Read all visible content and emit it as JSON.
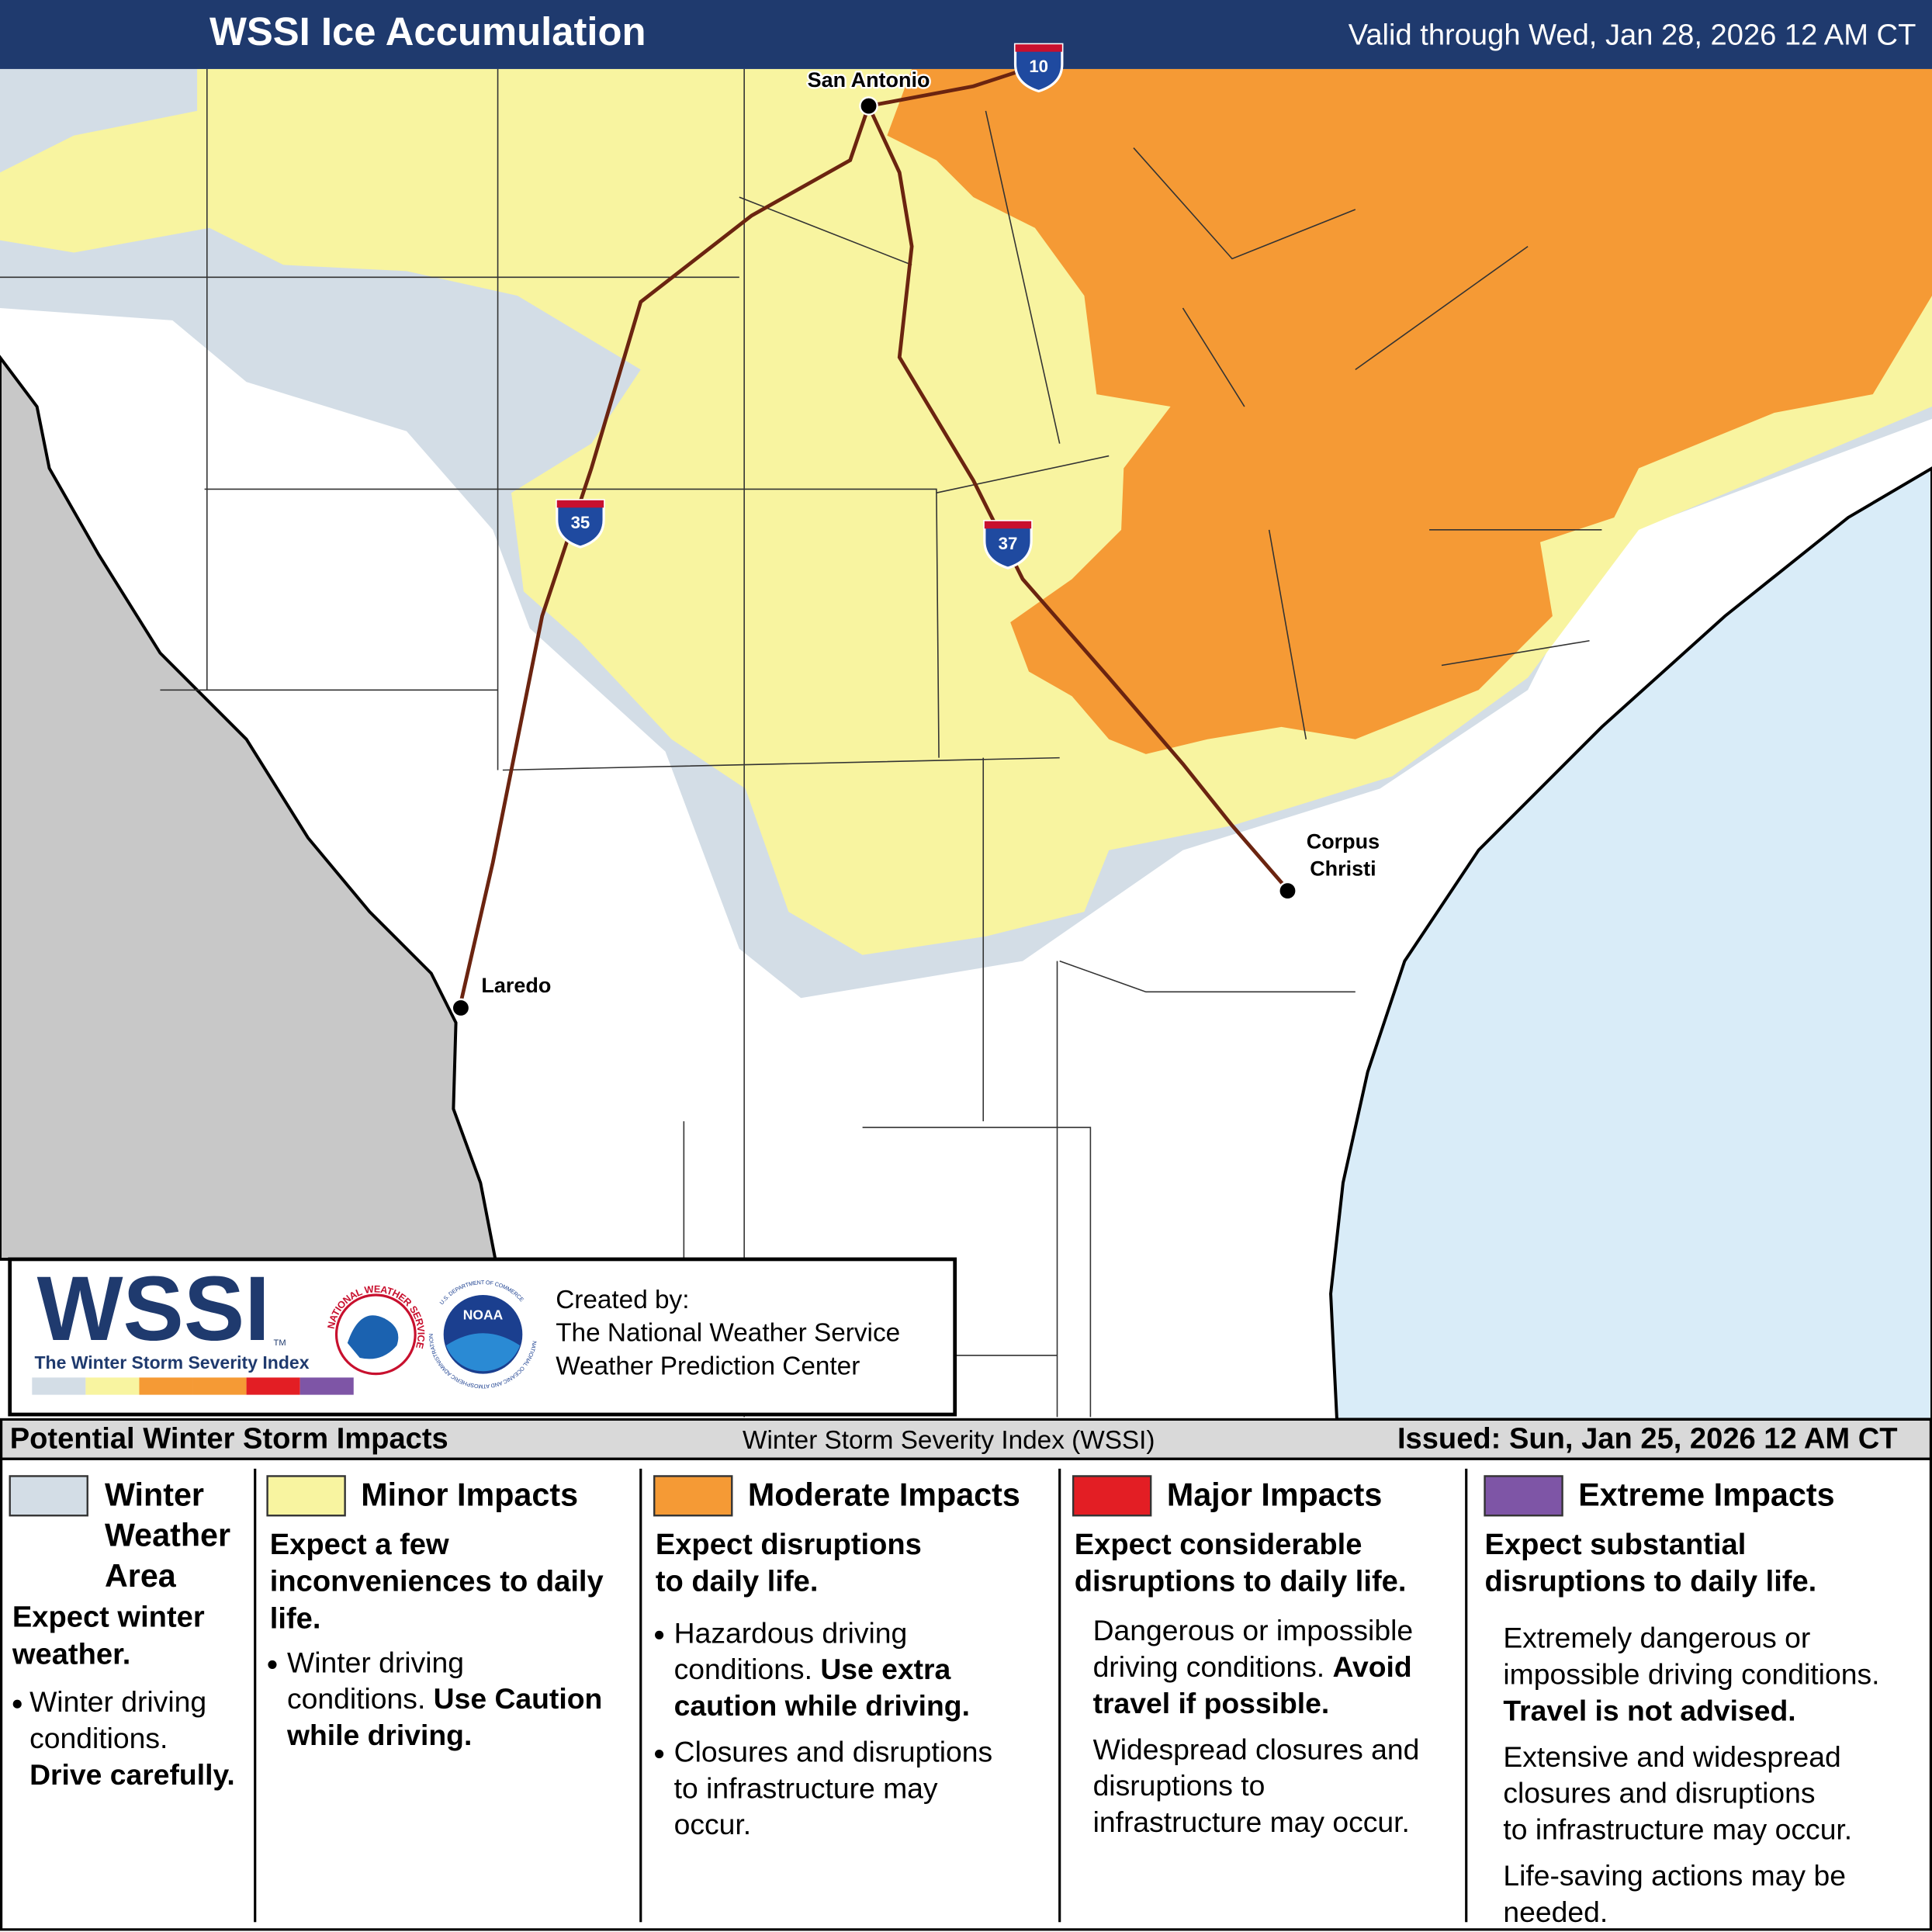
{
  "header": {
    "title": "WSSI Ice Accumulation",
    "valid": "Valid through Wed, Jan 28, 2026 12 AM CT"
  },
  "map": {
    "cities": [
      {
        "label_lines": [
          "San Antonio"
        ]
      },
      {
        "label_lines": [
          "Laredo"
        ]
      },
      {
        "label_lines": [
          "Corpus",
          "Christi"
        ]
      }
    ],
    "highways": [
      "10",
      "35",
      "37"
    ]
  },
  "logo": {
    "wssi": "WSSI",
    "tm": "TM",
    "subtitle": "The Winter Storm Severity Index",
    "nws_ring": "NATIONAL WEATHER SERVICE",
    "noaa": "NOAA",
    "noaa_ring": "NATIONAL OCEANIC AND ATMOSPHERIC ADMINISTRATION",
    "doc_ring": "U.S. DEPARTMENT OF COMMERCE"
  },
  "credits": [
    "Created by:",
    "The National Weather Service",
    "Weather Prediction Center"
  ],
  "legend": {
    "title": "Potential Winter Storm Impacts",
    "index": "Winter Storm Severity Index (WSSI)",
    "issued": "Issued: Sun, Jan 25, 2026 12 AM CT",
    "categories": [
      {
        "name": [
          "Winter",
          "Weather",
          "Area"
        ],
        "color": "#d3dde6",
        "summary": [
          "Expect winter",
          "weather."
        ],
        "bulleted": true,
        "details": [
          [
            [
              {
                "text": "Winter driving"
              }
            ],
            [
              {
                "text": "conditions."
              }
            ],
            [
              {
                "text": "Drive carefully.",
                "bold": true
              }
            ]
          ]
        ]
      },
      {
        "name": [
          "Minor Impacts"
        ],
        "color": "#f8f4a0",
        "summary": [
          "Expect a few",
          "inconveniences to daily",
          "life."
        ],
        "bulleted": true,
        "details": [
          [
            [
              {
                "text": "Winter driving"
              }
            ],
            [
              {
                "text": "conditions. "
              },
              {
                "text": "Use Caution",
                "bold": true
              }
            ],
            [
              {
                "text": "while driving.",
                "bold": true
              }
            ]
          ]
        ]
      },
      {
        "name": [
          "Moderate Impacts"
        ],
        "color": "#f59a35",
        "summary": [
          "Expect disruptions",
          "to daily life."
        ],
        "bulleted": true,
        "details": [
          [
            [
              {
                "text": "Hazardous driving"
              }
            ],
            [
              {
                "text": "conditions. "
              },
              {
                "text": "Use extra",
                "bold": true
              }
            ],
            [
              {
                "text": "caution while driving.",
                "bold": true
              }
            ]
          ],
          [
            [
              {
                "text": "Closures and disruptions"
              }
            ],
            [
              {
                "text": "to infrastructure may"
              }
            ],
            [
              {
                "text": "occur."
              }
            ]
          ]
        ]
      },
      {
        "name": [
          "Major Impacts"
        ],
        "color": "#e31e24",
        "summary": [
          "Expect considerable",
          "disruptions to daily life."
        ],
        "bulleted": false,
        "details": [
          [
            [
              {
                "text": "Dangerous or impossible"
              }
            ],
            [
              {
                "text": "driving conditions. "
              },
              {
                "text": "Avoid",
                "bold": true
              }
            ],
            [
              {
                "text": "travel if possible.",
                "bold": true
              }
            ]
          ],
          [
            [
              {
                "text": "Widespread closures and"
              }
            ],
            [
              {
                "text": "disruptions to"
              }
            ],
            [
              {
                "text": "infrastructure may occur."
              }
            ]
          ]
        ]
      },
      {
        "name": [
          "Extreme Impacts"
        ],
        "color": "#7e55a6",
        "summary": [
          "Expect substantial",
          "disruptions to daily life."
        ],
        "bulleted": false,
        "details": [
          [
            [
              {
                "text": "Extremely dangerous or"
              }
            ],
            [
              {
                "text": "impossible driving conditions."
              }
            ],
            [
              {
                "text": "Travel is not advised.",
                "bold": true
              }
            ]
          ],
          [
            [
              {
                "text": "Extensive and widespread"
              }
            ],
            [
              {
                "text": "closures and disruptions"
              }
            ],
            [
              {
                "text": "to infrastructure may occur."
              }
            ]
          ],
          [
            [
              {
                "text": "Life-saving actions may be"
              }
            ],
            [
              {
                "text": "needed."
              }
            ]
          ]
        ]
      }
    ]
  }
}
